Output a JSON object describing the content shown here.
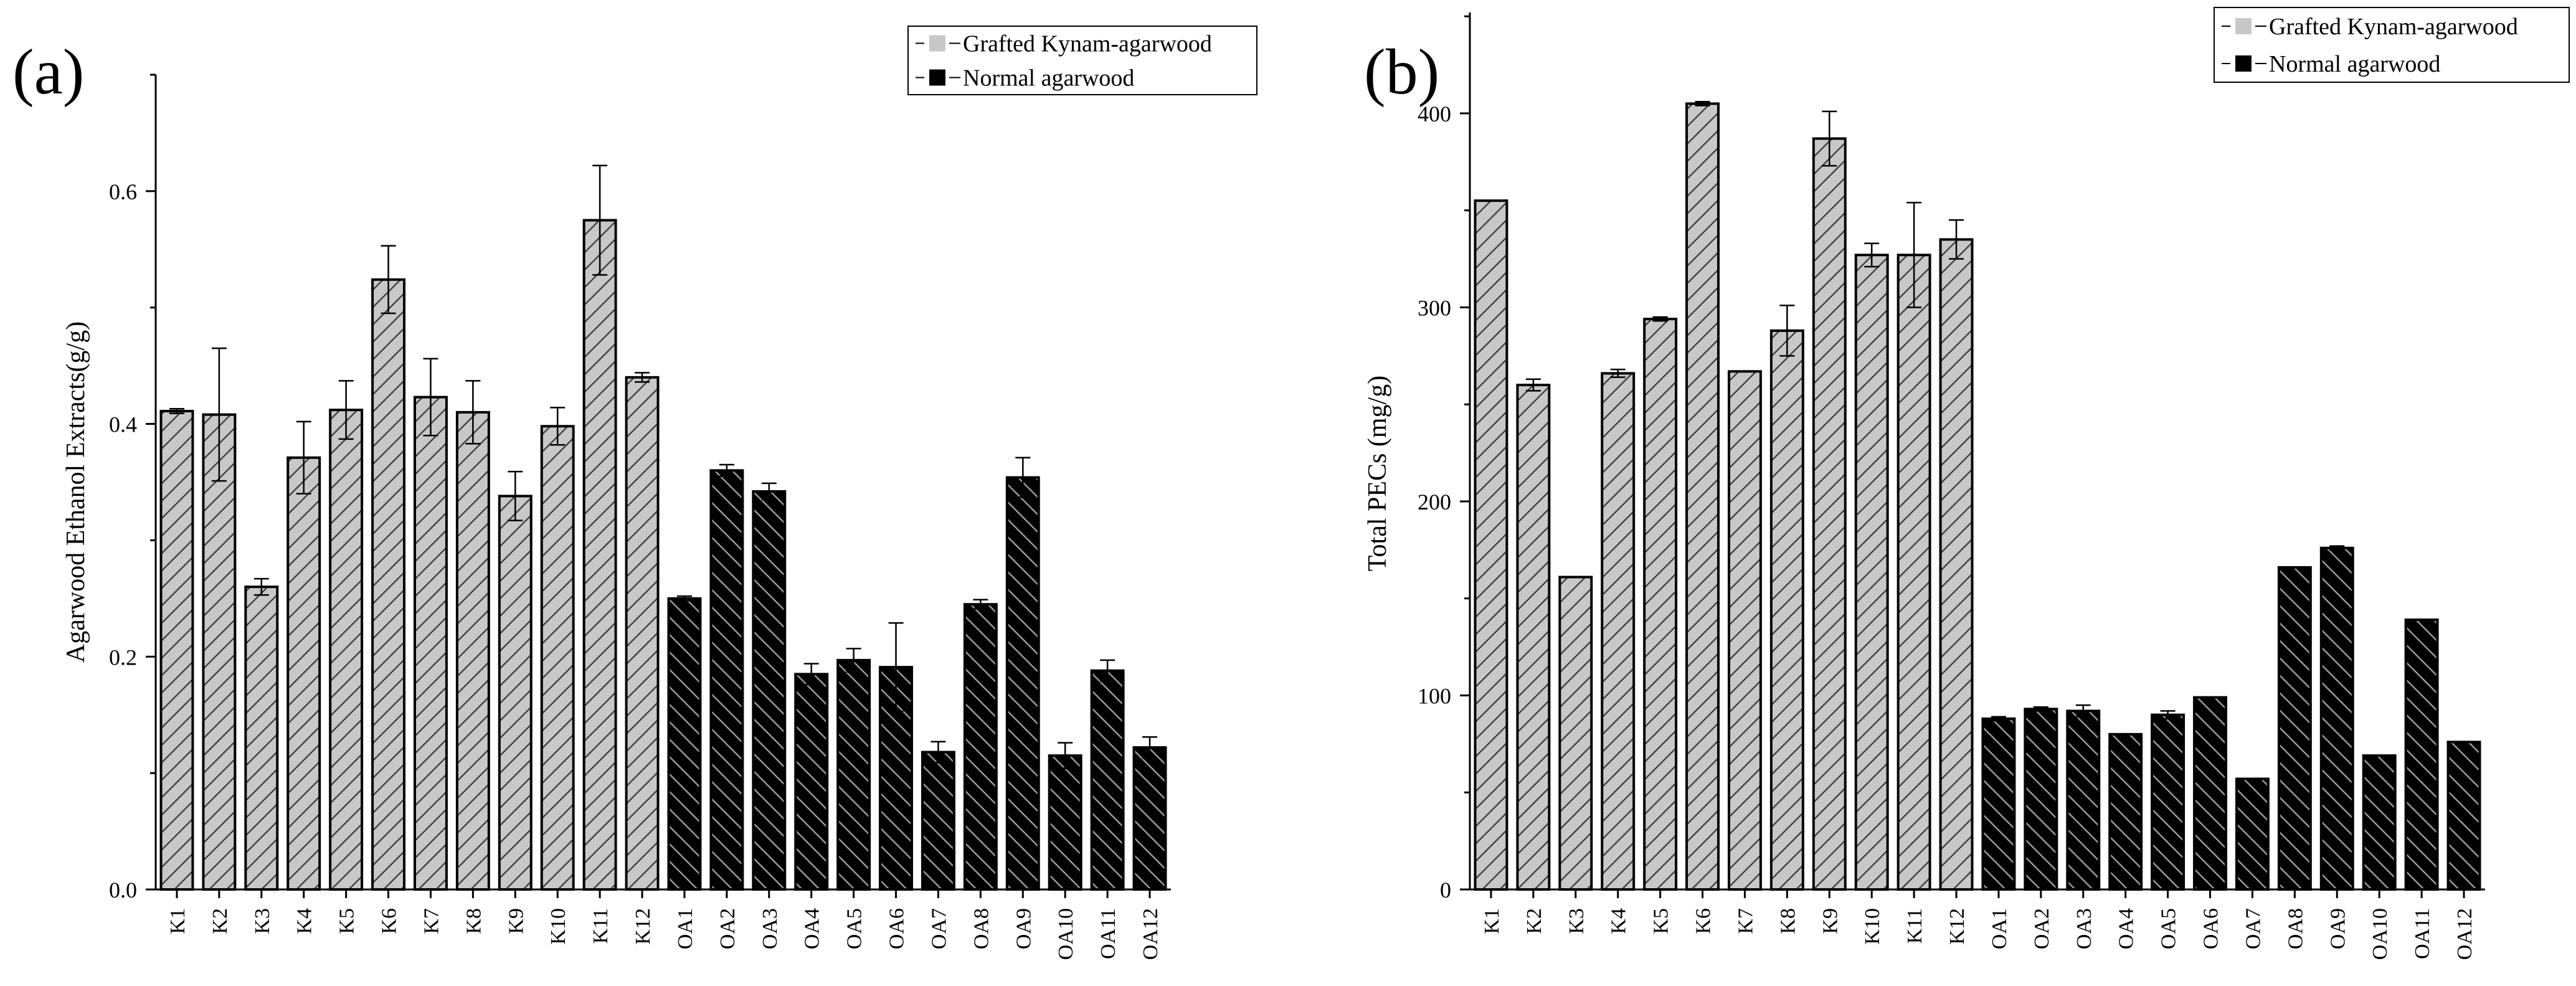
{
  "colors": {
    "grafted": "#c8c8c8",
    "normal": "#000000",
    "hatch_on_grafted": "#444444",
    "hatch_on_normal": "#9a9a9a"
  },
  "chart_data": [
    {
      "type": "bar",
      "panel_label": "(a)",
      "ylabel": "Agarwood Ethanol Extracts(g/g)",
      "xlabel": "",
      "ylim": [
        0,
        0.7
      ],
      "yticks": [
        0.0,
        0.2,
        0.4,
        0.6
      ],
      "ytick_labels": [
        "0.0",
        "0.2",
        "0.4",
        "0.6"
      ],
      "legend": {
        "position": "top-right",
        "entries": [
          {
            "label": "Grafted Kynam-agarwood",
            "color": "#c8c8c8"
          },
          {
            "label": "Normal agarwood",
            "color": "#000000"
          }
        ]
      },
      "categories": [
        "K1",
        "K2",
        "K3",
        "K4",
        "K5",
        "K6",
        "K7",
        "K8",
        "K9",
        "K10",
        "K11",
        "K12",
        "OA1",
        "OA2",
        "OA3",
        "OA4",
        "OA5",
        "OA6",
        "OA7",
        "OA8",
        "OA9",
        "OA10",
        "OA11",
        "OA12"
      ],
      "groups": [
        "grafted",
        "grafted",
        "grafted",
        "grafted",
        "grafted",
        "grafted",
        "grafted",
        "grafted",
        "grafted",
        "grafted",
        "grafted",
        "grafted",
        "normal",
        "normal",
        "normal",
        "normal",
        "normal",
        "normal",
        "normal",
        "normal",
        "normal",
        "normal",
        "normal",
        "normal"
      ],
      "values": [
        0.411,
        0.408,
        0.26,
        0.371,
        0.412,
        0.524,
        0.423,
        0.41,
        0.338,
        0.398,
        0.575,
        0.44,
        0.25,
        0.36,
        0.342,
        0.185,
        0.197,
        0.191,
        0.118,
        0.245,
        0.354,
        0.115,
        0.188,
        0.122
      ],
      "errors": [
        0.002,
        0.057,
        0.007,
        0.031,
        0.025,
        0.029,
        0.033,
        0.027,
        0.021,
        0.016,
        0.047,
        0.004,
        0.002,
        0.005,
        0.007,
        0.009,
        0.01,
        0.038,
        0.009,
        0.004,
        0.017,
        0.011,
        0.009,
        0.009
      ]
    },
    {
      "type": "bar",
      "panel_label": "(b)",
      "ylabel": "Total PECs (mg/g)",
      "xlabel": "",
      "ylim": [
        0,
        452
      ],
      "yticks": [
        0,
        100,
        200,
        300,
        400
      ],
      "ytick_labels": [
        "0",
        "100",
        "200",
        "300",
        "400"
      ],
      "legend": {
        "position": "top-right",
        "entries": [
          {
            "label": "Grafted Kynam-agarwood",
            "color": "#c8c8c8"
          },
          {
            "label": "Normal agarwood",
            "color": "#000000"
          }
        ]
      },
      "categories": [
        "K1",
        "K2",
        "K3",
        "K4",
        "K5",
        "K6",
        "K7",
        "K8",
        "K9",
        "K10",
        "K11",
        "K12",
        "OA1",
        "OA2",
        "OA3",
        "OA4",
        "OA5",
        "OA6",
        "OA7",
        "OA8",
        "OA9",
        "OA10",
        "OA11",
        "OA12"
      ],
      "groups": [
        "grafted",
        "grafted",
        "grafted",
        "grafted",
        "grafted",
        "grafted",
        "grafted",
        "grafted",
        "grafted",
        "grafted",
        "grafted",
        "grafted",
        "normal",
        "normal",
        "normal",
        "normal",
        "normal",
        "normal",
        "normal",
        "normal",
        "normal",
        "normal",
        "normal",
        "normal"
      ],
      "values": [
        355,
        260,
        161,
        266,
        294,
        405,
        267,
        288,
        387,
        327,
        327,
        335,
        88,
        93,
        92,
        80,
        90,
        99,
        57,
        166,
        176,
        69,
        139,
        76
      ],
      "errors": [
        0,
        3,
        0,
        2,
        1,
        1,
        0,
        13,
        14,
        6,
        27,
        10,
        1,
        1,
        3,
        0,
        2,
        0,
        0,
        0,
        1,
        0,
        0,
        0
      ]
    }
  ]
}
